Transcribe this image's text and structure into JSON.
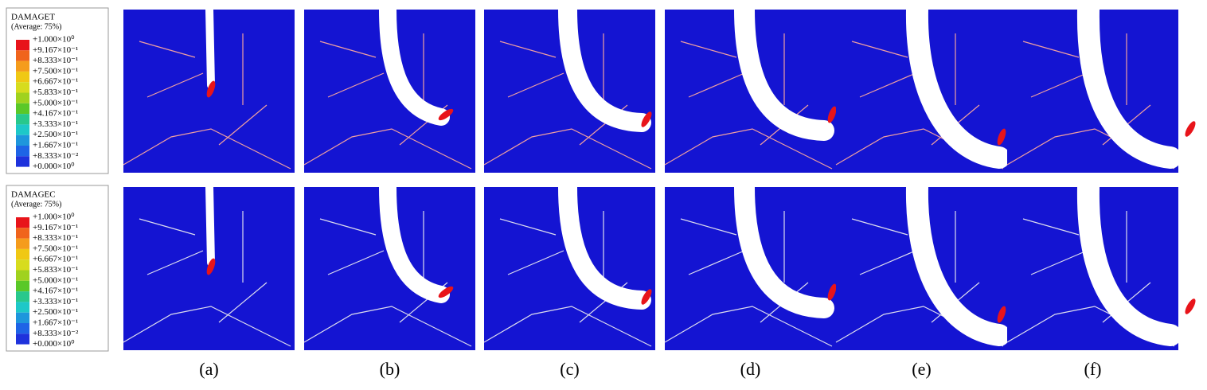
{
  "legends": [
    {
      "title": "DAMAGET",
      "subtitle": "(Average: 75%)",
      "labels": [
        "+1.000×10⁰",
        "+9.167×10⁻¹",
        "+8.333×10⁻¹",
        "+7.500×10⁻¹",
        "+6.667×10⁻¹",
        "+5.833×10⁻¹",
        "+5.000×10⁻¹",
        "+4.167×10⁻¹",
        "+3.333×10⁻¹",
        "+2.500×10⁻¹",
        "+1.667×10⁻¹",
        "+8.333×10⁻²",
        "+0.000×10⁰"
      ]
    },
    {
      "title": "DAMAGEC",
      "subtitle": "(Average: 75%)",
      "labels": [
        "+1.000×10⁰",
        "+9.167×10⁻¹",
        "+8.333×10⁻¹",
        "+7.500×10⁻¹",
        "+6.667×10⁻¹",
        "+5.833×10⁻¹",
        "+5.000×10⁻¹",
        "+4.167×10⁻¹",
        "+3.333×10⁻¹",
        "+2.500×10⁻¹",
        "+1.667×10⁻¹",
        "+8.333×10⁻²",
        "+0.000×10⁰"
      ]
    }
  ],
  "panel_labels": [
    "(a)",
    "(b)",
    "(c)",
    "(d)",
    "(e)",
    "(f)"
  ]
}
